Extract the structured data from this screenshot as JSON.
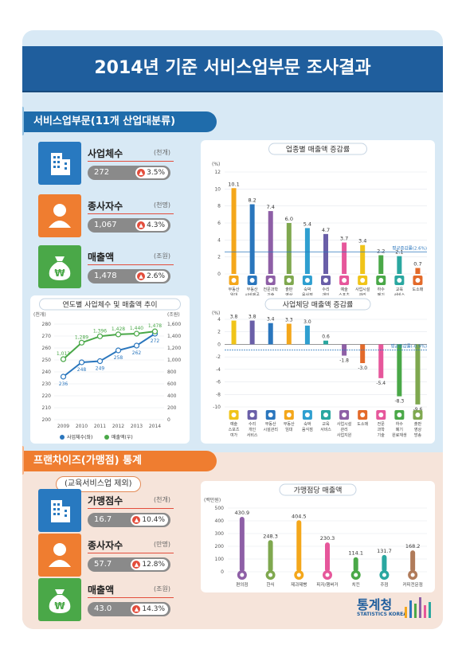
{
  "title": "2014년 기준 서비스업부문 조사결과",
  "section1": {
    "label": "서비스업부문(11개 산업대분류)",
    "stats": [
      {
        "name": "사업체수",
        "unit": "(천개)",
        "value": "272",
        "change": "3.5%"
      },
      {
        "name": "종사자수",
        "unit": "(천명)",
        "value": "1,067",
        "change": "4.3%"
      },
      {
        "name": "매출액",
        "unit": "(조원)",
        "value": "1,478",
        "change": "2.6%"
      }
    ]
  },
  "section2": {
    "label": "프랜차이즈(가맹점) 통계",
    "note": "(교육서비스업 제외)",
    "stats": [
      {
        "name": "가맹점수",
        "unit": "(천개)",
        "value": "16.7",
        "change": "10.4%"
      },
      {
        "name": "종사자수",
        "unit": "(만명)",
        "value": "57.7",
        "change": "12.8%"
      },
      {
        "name": "매출액",
        "unit": "(조원)",
        "value": "43.0",
        "change": "14.3%"
      }
    ]
  },
  "logo": {
    "korean": "통계청",
    "english": "STATISTICS KOREA"
  },
  "colors": {
    "title": "#1f5e9d",
    "section1": "#1f6cab",
    "section2": "#ef7d30",
    "up": "#e34d3c"
  },
  "chart_data": [
    {
      "type": "bar",
      "title": "업종별 매출액 증감률",
      "ylabel": "(%)",
      "ylim": [
        0,
        12
      ],
      "yticks": [
        0,
        2,
        4,
        6,
        8,
        10,
        12
      ],
      "reference_label": "평균증감률(2.6%)",
      "reference_value": 2.6,
      "categories": [
        "부동산 임대",
        "부동산 시비제공",
        "전문과학 기술 서비스업",
        "출판 영상 방송",
        "숙박 음식점",
        "수리 개인 서비스",
        "예술 스포츠 여가",
        "사업시설 관리",
        "하수 폐기 원료재생",
        "교육 서비스",
        "도소매"
      ],
      "values": [
        10.1,
        8.2,
        7.4,
        6.0,
        5.4,
        4.7,
        3.7,
        3.4,
        2.2,
        2.1,
        0.7
      ],
      "colors": [
        "#f4a71b",
        "#2a76bd",
        "#8e5fa6",
        "#7fa84f",
        "#2f9fd0",
        "#6a5fa8",
        "#e6579b",
        "#f0c419",
        "#4aa848",
        "#2aa7a0",
        "#e36a2a"
      ]
    },
    {
      "type": "line",
      "title": "연도별 사업체수 및 매출액 추이",
      "categories": [
        "2009",
        "2010",
        "2011",
        "2012",
        "2013",
        "2014"
      ],
      "ylabel_left": "(천개)",
      "ylabel_right": "(조원)",
      "ylim_left": [
        200,
        280
      ],
      "ylim_right": [
        0,
        1600
      ],
      "series": [
        {
          "name": "사업체수(좌)",
          "axis": "left",
          "values": [
            236,
            248,
            249,
            258,
            262,
            272
          ]
        },
        {
          "name": "매출액(우)",
          "axis": "right",
          "values": [
            1013,
            1289,
            1396,
            1428,
            1440,
            1478
          ]
        }
      ],
      "value_labels": {
        "사업체수(좌)": [
          "236",
          "248",
          "249",
          "258",
          "262",
          "272"
        ],
        "매출액(우)": [
          "1,013",
          "1,289",
          "1,396",
          "1,428",
          "1,440",
          "1,478"
        ]
      }
    },
    {
      "type": "bar",
      "title": "사업체당 매출액 증감률",
      "ylabel": "(%)",
      "ylim": [
        -10,
        4
      ],
      "yticks": [
        4,
        2,
        0,
        -2,
        -4,
        -6,
        -8,
        -10
      ],
      "reference_label": "평균증감률(-0.9%)",
      "reference_value": -0.9,
      "categories": [
        "예술 스포츠 여가",
        "수리 개인 서비스",
        "부동산 시설관리",
        "부동산 임대",
        "숙박 음식점",
        "교육 서비스",
        "사업시설 관리 사업지원",
        "도소매",
        "전문 과학 기술",
        "하수 폐기 원료재생",
        "출판 영상 방송"
      ],
      "values": [
        3.8,
        3.8,
        3.4,
        3.3,
        3.0,
        0.6,
        -1.8,
        -3.0,
        -5.4,
        -8.3,
        -9.6
      ],
      "colors": [
        "#f0c419",
        "#6a5fa8",
        "#2a76bd",
        "#f4a71b",
        "#2f9fd0",
        "#2aa7a0",
        "#8e5fa6",
        "#e36a2a",
        "#e6579b",
        "#4aa848",
        "#7fa84f"
      ]
    },
    {
      "type": "bar",
      "title": "가맹점당 매출액",
      "ylabel": "(백만원)",
      "ylim": [
        0,
        500
      ],
      "yticks": [
        500,
        400,
        300,
        200,
        100,
        0
      ],
      "categories": [
        "편의점",
        "한식",
        "제과제빵",
        "피자/햄버거",
        "치킨",
        "주점",
        "커피전문점"
      ],
      "values": [
        430.9,
        248.3,
        404.5,
        230.3,
        114.1,
        131.7,
        168.2
      ],
      "labels": [
        "430.9",
        "248.3",
        "404.5",
        "230.3",
        "114.1",
        "131.7",
        "168.2"
      ],
      "colors": [
        "#8e5fa6",
        "#7fa84f",
        "#f4a71b",
        "#e6579b",
        "#4aa848",
        "#2aa7a0",
        "#b07b5a"
      ]
    }
  ]
}
